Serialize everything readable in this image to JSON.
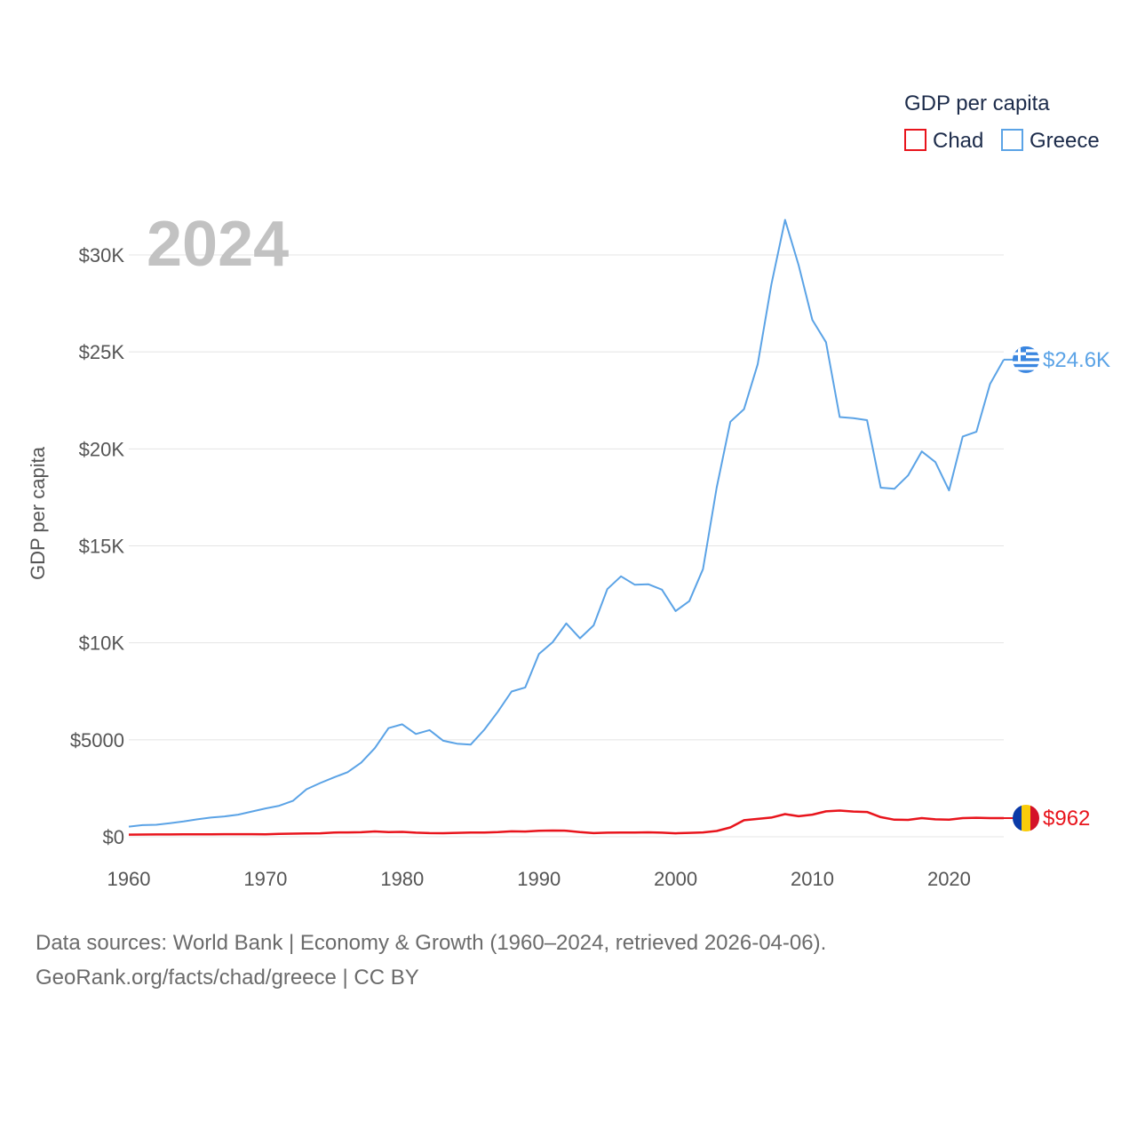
{
  "chart_data": {
    "type": "line",
    "year_label": "2024",
    "ylabel": "GDP per capita",
    "xlabel": "",
    "xlim": [
      1960,
      2024
    ],
    "ylim": [
      0,
      32000
    ],
    "x_ticks": [
      {
        "value": 1960,
        "label": "1960"
      },
      {
        "value": 1970,
        "label": "1970"
      },
      {
        "value": 1980,
        "label": "1980"
      },
      {
        "value": 1990,
        "label": "1990"
      },
      {
        "value": 2000,
        "label": "2000"
      },
      {
        "value": 2010,
        "label": "2010"
      },
      {
        "value": 2020,
        "label": "2020"
      }
    ],
    "y_ticks": [
      {
        "value": 0,
        "label": "$0"
      },
      {
        "value": 5000,
        "label": "$5000"
      },
      {
        "value": 10000,
        "label": "$10K"
      },
      {
        "value": 15000,
        "label": "$15K"
      },
      {
        "value": 20000,
        "label": "$20K"
      },
      {
        "value": 25000,
        "label": "$25K"
      },
      {
        "value": 30000,
        "label": "$30K"
      }
    ],
    "legend": {
      "title": "GDP per capita",
      "entries": [
        {
          "name": "Chad",
          "color": "#e8141c"
        },
        {
          "name": "Greece",
          "color": "#5ba3e6"
        }
      ]
    },
    "x": [
      1960,
      1961,
      1962,
      1963,
      1964,
      1965,
      1966,
      1967,
      1968,
      1969,
      1970,
      1971,
      1972,
      1973,
      1974,
      1975,
      1976,
      1977,
      1978,
      1979,
      1980,
      1981,
      1982,
      1983,
      1984,
      1985,
      1986,
      1987,
      1988,
      1989,
      1990,
      1991,
      1992,
      1993,
      1994,
      1995,
      1996,
      1997,
      1998,
      1999,
      2000,
      2001,
      2002,
      2003,
      2004,
      2005,
      2006,
      2007,
      2008,
      2009,
      2010,
      2011,
      2012,
      2013,
      2014,
      2015,
      2016,
      2017,
      2018,
      2019,
      2020,
      2021,
      2022,
      2023,
      2024
    ],
    "series": [
      {
        "name": "Greece",
        "color": "#5ba3e6",
        "end_label": "$24.6K",
        "values": [
          520,
          600,
          620,
          700,
          790,
          900,
          990,
          1050,
          1140,
          1300,
          1460,
          1600,
          1850,
          2450,
          2770,
          3060,
          3330,
          3820,
          4570,
          5600,
          5800,
          5300,
          5500,
          4950,
          4800,
          4750,
          5520,
          6450,
          7490,
          7700,
          9420,
          10030,
          11000,
          10230,
          10900,
          12770,
          13430,
          13000,
          13020,
          12740,
          11640,
          12150,
          13800,
          18000,
          21400,
          22050,
          24360,
          28480,
          31810,
          29470,
          26650,
          25500,
          21640,
          21580,
          21480,
          18000,
          17940,
          18630,
          19870,
          19320,
          17860,
          20640,
          20880,
          23350,
          24600
        ]
      },
      {
        "name": "Chad",
        "color": "#e8141c",
        "end_label": "$962",
        "values": [
          110,
          115,
          118,
          120,
          123,
          125,
          128,
          133,
          132,
          133,
          130,
          145,
          160,
          175,
          180,
          220,
          225,
          235,
          275,
          240,
          250,
          210,
          190,
          185,
          200,
          215,
          220,
          240,
          280,
          270,
          310,
          320,
          310,
          240,
          190,
          210,
          220,
          215,
          230,
          210,
          180,
          200,
          225,
          300,
          480,
          850,
          920,
          990,
          1170,
          1060,
          1140,
          1310,
          1350,
          1300,
          1280,
          1010,
          880,
          870,
          960,
          900,
          880,
          960,
          980,
          960,
          962
        ]
      }
    ]
  },
  "footer": {
    "line1": "Data sources: World Bank | Economy & Growth (1960–2024, retrieved 2026-04-06).",
    "line2": "GeoRank.org/facts/chad/greece | CC BY"
  },
  "flags": {
    "greece": {
      "blue": "#3a86e0",
      "white": "#ffffff"
    },
    "chad": {
      "blue": "#0a3aa8",
      "yellow": "#f9cc0a",
      "red": "#d41228"
    }
  }
}
